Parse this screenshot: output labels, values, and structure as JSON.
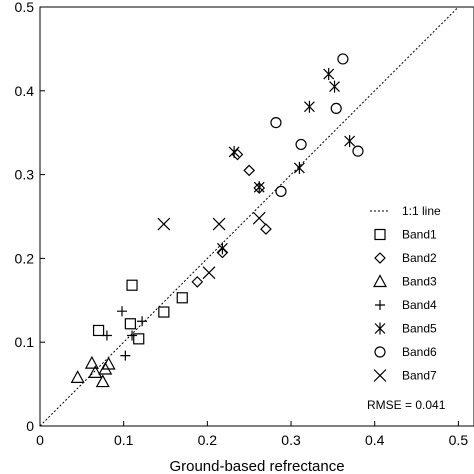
{
  "chart_data": {
    "type": "scatter",
    "title": "",
    "xlabel": "Ground-based refrectance",
    "ylabel": "",
    "xlim": [
      0,
      0.5
    ],
    "ylim": [
      0,
      0.5
    ],
    "xticks": [
      "0",
      "0.1",
      "0.2",
      "0.3",
      "0.4",
      "0.5"
    ],
    "yticks": [
      "0",
      "0.1",
      "0.2",
      "0.3",
      "0.4",
      "0.5"
    ],
    "reference_line": {
      "label": "1:1 line",
      "style": "dotted",
      "from": [
        0,
        0
      ],
      "to": [
        0.5,
        0.5
      ]
    },
    "legend_position": "bottom-right",
    "annotation": "RMSE = 0.041",
    "series": [
      {
        "name": "Band1",
        "marker": "square",
        "points": [
          [
            0.07,
            0.114
          ],
          [
            0.108,
            0.122
          ],
          [
            0.118,
            0.104
          ],
          [
            0.11,
            0.168
          ],
          [
            0.148,
            0.136
          ],
          [
            0.17,
            0.153
          ]
        ]
      },
      {
        "name": "Band2",
        "marker": "diamond",
        "points": [
          [
            0.188,
            0.172
          ],
          [
            0.218,
            0.207
          ],
          [
            0.236,
            0.324
          ],
          [
            0.25,
            0.305
          ],
          [
            0.262,
            0.284
          ],
          [
            0.27,
            0.235
          ]
        ]
      },
      {
        "name": "Band3",
        "marker": "triangle",
        "points": [
          [
            0.045,
            0.058
          ],
          [
            0.062,
            0.075
          ],
          [
            0.066,
            0.064
          ],
          [
            0.078,
            0.068
          ],
          [
            0.082,
            0.074
          ],
          [
            0.075,
            0.053
          ]
        ]
      },
      {
        "name": "Band4",
        "marker": "plus",
        "points": [
          [
            0.08,
            0.108
          ],
          [
            0.098,
            0.137
          ],
          [
            0.102,
            0.084
          ],
          [
            0.11,
            0.108
          ],
          [
            0.122,
            0.125
          ]
        ]
      },
      {
        "name": "Band5",
        "marker": "asterisk",
        "points": [
          [
            0.232,
            0.327
          ],
          [
            0.262,
            0.285
          ],
          [
            0.31,
            0.308
          ],
          [
            0.322,
            0.381
          ],
          [
            0.345,
            0.42
          ],
          [
            0.352,
            0.405
          ],
          [
            0.37,
            0.34
          ],
          [
            0.218,
            0.212
          ]
        ]
      },
      {
        "name": "Band6",
        "marker": "circle",
        "points": [
          [
            0.282,
            0.362
          ],
          [
            0.288,
            0.28
          ],
          [
            0.312,
            0.336
          ],
          [
            0.354,
            0.379
          ],
          [
            0.362,
            0.438
          ],
          [
            0.38,
            0.328
          ]
        ]
      },
      {
        "name": "Band7",
        "marker": "x",
        "points": [
          [
            0.148,
            0.241
          ],
          [
            0.202,
            0.183
          ],
          [
            0.214,
            0.241
          ],
          [
            0.262,
            0.248
          ]
        ]
      }
    ]
  }
}
